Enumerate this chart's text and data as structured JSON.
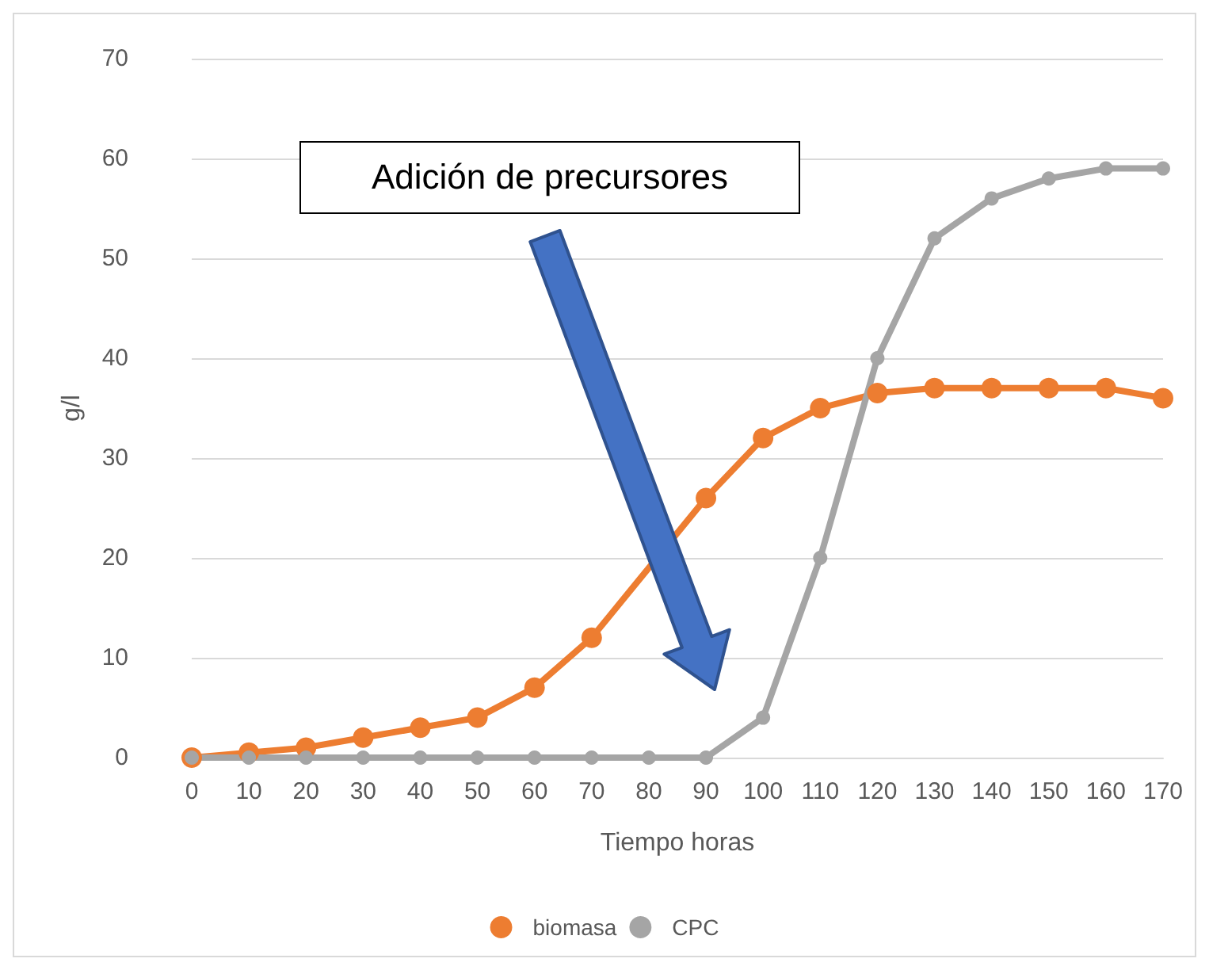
{
  "chart_data": {
    "type": "line",
    "xlabel": "Tiempo horas",
    "ylabel": "g/l",
    "categories": [
      "0",
      "10",
      "20",
      "30",
      "40",
      "50",
      "60",
      "70",
      "80",
      "90",
      "100",
      "110",
      "120",
      "130",
      "140",
      "150",
      "160",
      "170"
    ],
    "series": [
      {
        "name": "biomasa",
        "color": "#ed7d31",
        "values": [
          0,
          0.5,
          1,
          2,
          3,
          4,
          7,
          12,
          null,
          26,
          32,
          35,
          36.5,
          37,
          37,
          37,
          37,
          36
        ]
      },
      {
        "name": "CPC",
        "color": "#a5a5a5",
        "values": [
          0,
          0,
          0,
          0,
          0,
          0,
          0,
          0,
          0,
          0,
          4,
          20,
          40,
          52,
          56,
          58,
          59,
          59
        ]
      }
    ],
    "ylim": [
      0,
      70
    ],
    "yticks": [
      0,
      10,
      20,
      30,
      40,
      50,
      60,
      70
    ],
    "grid": "y",
    "legend": "bottom",
    "marker": "circle",
    "annotations": [
      "Adición de precursores"
    ]
  }
}
